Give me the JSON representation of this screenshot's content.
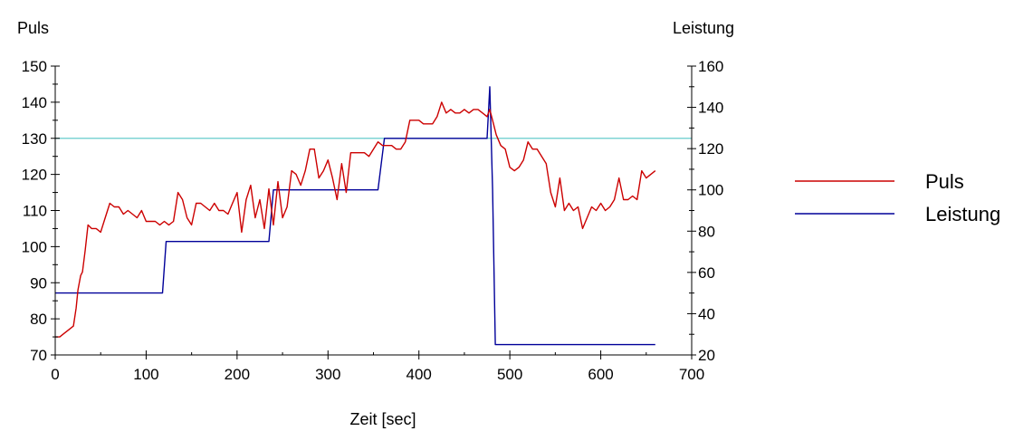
{
  "chart_data": {
    "type": "line",
    "xlabel": "Zeit [sec]",
    "y_left_label": "Puls",
    "y_right_label": "Leistung",
    "xlim": [
      0,
      700
    ],
    "ylim_left": [
      70,
      150
    ],
    "ylim_right": [
      20,
      160
    ],
    "x_ticks": [
      0,
      100,
      200,
      300,
      400,
      500,
      600,
      700
    ],
    "y_left_ticks": [
      70,
      80,
      90,
      100,
      110,
      120,
      130,
      140,
      150
    ],
    "y_right_ticks": [
      20,
      40,
      60,
      80,
      100,
      120,
      140,
      160
    ],
    "legend_position": "right",
    "reference_line": {
      "axis": "left",
      "value": 130,
      "color": "#66cccc"
    },
    "series": [
      {
        "name": "Puls",
        "axis": "left",
        "color": "#cc0000",
        "points": [
          [
            0,
            75
          ],
          [
            5,
            75
          ],
          [
            10,
            76
          ],
          [
            15,
            77
          ],
          [
            20,
            78
          ],
          [
            23,
            83
          ],
          [
            25,
            88
          ],
          [
            28,
            92
          ],
          [
            30,
            93
          ],
          [
            33,
            99
          ],
          [
            36,
            106
          ],
          [
            40,
            105
          ],
          [
            45,
            105
          ],
          [
            50,
            104
          ],
          [
            55,
            108
          ],
          [
            60,
            112
          ],
          [
            65,
            111
          ],
          [
            70,
            111
          ],
          [
            75,
            109
          ],
          [
            80,
            110
          ],
          [
            85,
            109
          ],
          [
            90,
            108
          ],
          [
            95,
            110
          ],
          [
            100,
            107
          ],
          [
            105,
            107
          ],
          [
            110,
            107
          ],
          [
            115,
            106
          ],
          [
            120,
            107
          ],
          [
            125,
            106
          ],
          [
            130,
            107
          ],
          [
            135,
            115
          ],
          [
            140,
            113
          ],
          [
            145,
            108
          ],
          [
            150,
            106
          ],
          [
            155,
            112
          ],
          [
            160,
            112
          ],
          [
            165,
            111
          ],
          [
            170,
            110
          ],
          [
            175,
            112
          ],
          [
            180,
            110
          ],
          [
            185,
            110
          ],
          [
            190,
            109
          ],
          [
            195,
            112
          ],
          [
            200,
            115
          ],
          [
            205,
            104
          ],
          [
            210,
            113
          ],
          [
            215,
            117
          ],
          [
            220,
            108
          ],
          [
            225,
            113
          ],
          [
            230,
            105
          ],
          [
            235,
            116
          ],
          [
            240,
            106
          ],
          [
            245,
            118
          ],
          [
            250,
            108
          ],
          [
            255,
            111
          ],
          [
            260,
            121
          ],
          [
            265,
            120
          ],
          [
            270,
            117
          ],
          [
            275,
            121
          ],
          [
            280,
            127
          ],
          [
            285,
            127
          ],
          [
            290,
            119
          ],
          [
            295,
            121
          ],
          [
            300,
            124
          ],
          [
            305,
            119
          ],
          [
            310,
            113
          ],
          [
            315,
            123
          ],
          [
            320,
            115
          ],
          [
            325,
            126
          ],
          [
            330,
            126
          ],
          [
            335,
            126
          ],
          [
            340,
            126
          ],
          [
            345,
            125
          ],
          [
            350,
            127
          ],
          [
            355,
            129
          ],
          [
            360,
            128
          ],
          [
            365,
            128
          ],
          [
            370,
            128
          ],
          [
            375,
            127
          ],
          [
            380,
            127
          ],
          [
            385,
            129
          ],
          [
            390,
            135
          ],
          [
            395,
            135
          ],
          [
            400,
            135
          ],
          [
            405,
            134
          ],
          [
            410,
            134
          ],
          [
            415,
            134
          ],
          [
            420,
            136
          ],
          [
            425,
            140
          ],
          [
            430,
            137
          ],
          [
            435,
            138
          ],
          [
            440,
            137
          ],
          [
            445,
            137
          ],
          [
            450,
            138
          ],
          [
            455,
            137
          ],
          [
            460,
            138
          ],
          [
            465,
            138
          ],
          [
            470,
            137
          ],
          [
            475,
            136
          ],
          [
            478,
            138
          ],
          [
            482,
            134
          ],
          [
            485,
            131
          ],
          [
            490,
            128
          ],
          [
            495,
            127
          ],
          [
            500,
            122
          ],
          [
            505,
            121
          ],
          [
            510,
            122
          ],
          [
            515,
            124
          ],
          [
            520,
            129
          ],
          [
            525,
            127
          ],
          [
            530,
            127
          ],
          [
            535,
            125
          ],
          [
            540,
            123
          ],
          [
            545,
            115
          ],
          [
            550,
            111
          ],
          [
            555,
            119
          ],
          [
            560,
            110
          ],
          [
            565,
            112
          ],
          [
            570,
            110
          ],
          [
            575,
            111
          ],
          [
            580,
            105
          ],
          [
            585,
            108
          ],
          [
            590,
            111
          ],
          [
            595,
            110
          ],
          [
            600,
            112
          ],
          [
            605,
            110
          ],
          [
            610,
            111
          ],
          [
            615,
            113
          ],
          [
            620,
            119
          ],
          [
            625,
            113
          ],
          [
            630,
            113
          ],
          [
            635,
            114
          ],
          [
            640,
            113
          ],
          [
            645,
            121
          ],
          [
            650,
            119
          ],
          [
            655,
            120
          ],
          [
            660,
            121
          ]
        ]
      },
      {
        "name": "Leistung",
        "axis": "right",
        "color": "#000099",
        "points": [
          [
            0,
            50
          ],
          [
            118,
            50
          ],
          [
            122,
            75
          ],
          [
            235,
            75
          ],
          [
            240,
            100
          ],
          [
            355,
            100
          ],
          [
            362,
            125
          ],
          [
            475,
            125
          ],
          [
            478,
            150
          ],
          [
            481,
            100
          ],
          [
            484,
            25
          ],
          [
            660,
            25
          ]
        ]
      }
    ]
  }
}
